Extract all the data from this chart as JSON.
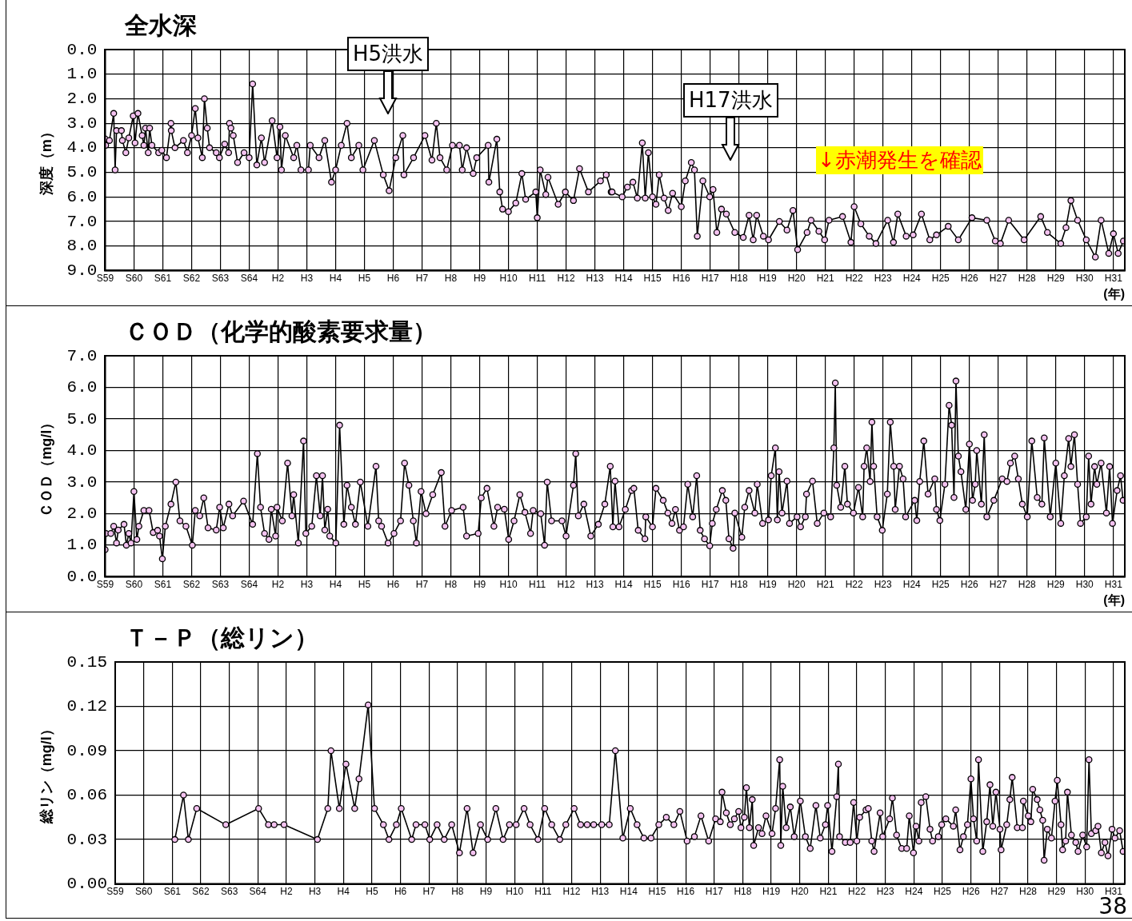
{
  "chart_data": [
    {
      "type": "line",
      "title": "全水深",
      "ylabel": "深度（m）",
      "xlabel": "(年)",
      "color": "#000000",
      "marker": "circle",
      "line_style": "solid",
      "grid": true,
      "annotations": [
        "H5洪水",
        "H17洪水",
        "↓赤潮発生を確認"
      ],
      "ylim": [
        9,
        0
      ],
      "yticks": [
        {
          "value": 0,
          "label": "0.0"
        },
        {
          "value": 1,
          "label": "1.0"
        },
        {
          "value": 2,
          "label": "2.0"
        },
        {
          "value": 3,
          "label": "3.0"
        },
        {
          "value": 4,
          "label": "4.0"
        },
        {
          "value": 5,
          "label": "5.0"
        },
        {
          "value": 6,
          "label": "6.0"
        },
        {
          "value": 7,
          "label": "7.0"
        },
        {
          "value": 8,
          "label": "8.0"
        },
        {
          "value": 9,
          "label": "9.0"
        }
      ],
      "xlim": [
        "1984",
        "2019-05-25"
      ],
      "xticks": [
        {
          "value": "1984",
          "label": "S59"
        },
        {
          "value": "1985",
          "label": "S60"
        },
        {
          "value": "1986",
          "label": "S61"
        },
        {
          "value": "1987",
          "label": "S62"
        },
        {
          "value": "1988",
          "label": "S63"
        },
        {
          "value": "1989",
          "label": "S64"
        },
        {
          "value": "1990",
          "label": "H2"
        },
        {
          "value": "1991",
          "label": "H3"
        },
        {
          "value": "1992",
          "label": "H4"
        },
        {
          "value": "1993",
          "label": "H5"
        },
        {
          "value": "1994",
          "label": "H6"
        },
        {
          "value": "1995",
          "label": "H7"
        },
        {
          "value": "1996",
          "label": "H8"
        },
        {
          "value": "1997",
          "label": "H9"
        },
        {
          "value": "1998",
          "label": "H10"
        },
        {
          "value": "1999",
          "label": "H11"
        },
        {
          "value": "2000",
          "label": "H12"
        },
        {
          "value": "2001",
          "label": "H13"
        },
        {
          "value": "2002",
          "label": "H14"
        },
        {
          "value": "2003",
          "label": "H15"
        },
        {
          "value": "2004",
          "label": "H16"
        },
        {
          "value": "2005",
          "label": "H17"
        },
        {
          "value": "2006",
          "label": "H18"
        },
        {
          "value": "2007",
          "label": "H19"
        },
        {
          "value": "2008",
          "label": "H20"
        },
        {
          "value": "2009",
          "label": "H21"
        },
        {
          "value": "2010",
          "label": "H22"
        },
        {
          "value": "2011",
          "label": "H23"
        },
        {
          "value": "2012",
          "label": "H24"
        },
        {
          "value": "2013",
          "label": "H25"
        },
        {
          "value": "2014",
          "label": "H26"
        },
        {
          "value": "2015",
          "label": "H27"
        },
        {
          "value": "2016",
          "label": "H28"
        },
        {
          "value": "2017",
          "label": "H29"
        },
        {
          "value": "2018",
          "label": "H30"
        },
        {
          "value": "2019",
          "label": "H31"
        }
      ],
      "x": [
        "1984-01-01",
        "1984-01-08",
        "1984-02-25",
        "1984-04-19",
        "1984-05-07",
        "1984-05-25",
        "1984-07-26",
        "1984-08-07",
        "1984-09-20",
        "1984-10-28",
        "1984-12-23",
        "1985-01-15",
        "1985-02-21",
        "1985-04-15",
        "1985-05-07",
        "1985-05-28",
        "1985-07-01",
        "1985-07-19",
        "1985-08-17",
        "1985-11-10",
        "1985-12-20",
        "1986-02-17",
        "1986-04-15",
        "1986-04-19",
        "1986-06-05",
        "1986-09-20",
        "1986-11-10",
        "1987-01-01",
        "1987-02-17",
        "1987-03-23",
        "1987-05-17",
        "1987-06-13",
        "1987-07-19",
        "1987-08-17",
        "1987-11-10",
        "1987-12-20",
        "1988-02-25",
        "1988-04-15",
        "1988-04-26",
        "1988-05-14",
        "1988-06-13",
        "1988-08-07",
        "1988-10-28",
        "1989-01-01",
        "1989-02-14",
        "1989-04-08",
        "1989-06-05",
        "1989-07-15",
        "1989-10-19",
        "1989-12-20",
        "1990-01-26",
        "1990-02-14",
        "1990-04-04",
        "1990-07-19",
        "1990-08-28",
        "1990-10-19",
        "1991-01-22",
        "1991-02-14",
        "1991-06-05",
        "1991-08-17",
        "1991-11-10",
        "1992-01-01",
        "1992-03-13",
        "1992-05-25",
        "1992-07-19",
        "1992-10-22",
        "1992-12-13",
        "1993-05-07",
        "1993-08-28",
        "1993-11-10",
        "1994-02-03",
        "1994-05-03",
        "1994-05-17",
        "1994-09-16",
        "1995-02-07",
        "1995-05-07",
        "1995-07-01",
        "1995-08-17",
        "1995-11-10",
        "1996-01-22",
        "1996-04-19",
        "1996-05-25",
        "1996-07-19",
        "1996-10-11",
        "1996-11-25",
        "1997-04-19",
        "1997-04-28",
        "1997-08-07",
        "1997-09-13",
        "1997-10-19",
        "1998-01-01",
        "1998-04-04",
        "1998-06-20",
        "1998-08-07",
        "1998-12-13",
        "1999-01-01",
        "1999-02-07",
        "1999-04-19",
        "1999-05-17",
        "1999-09-23",
        "1999-12-23",
        "2000-04-04",
        "2000-06-20",
        "2000-10-11",
        "2001-03-13",
        "2001-05-25",
        "2001-07-26",
        "2001-08-07",
        "2001-12-13",
        "2002-02-17",
        "2002-04-28",
        "2002-06-23",
        "2002-08-25",
        "2002-10-01",
        "2002-11-10",
        "2003-01-01",
        "2003-02-14",
        "2003-03-27",
        "2003-05-28",
        "2003-07-19",
        "2003-09-13",
        "2004-01-01",
        "2004-02-21",
        "2004-05-07",
        "2004-06-16",
        "2004-07-22",
        "2004-10-01",
        "2004-12-27",
        "2005-02-07",
        "2005-03-27",
        "2005-05-25",
        "2005-07-26",
        "2005-11-10",
        "2006-02-25",
        "2006-05-10",
        "2006-07-01",
        "2006-08-14",
        "2006-11-07",
        "2007-01-11",
        "2007-05-28",
        "2007-09-02",
        "2007-11-17",
        "2008-01-15",
        "2008-05-14",
        "2008-07-04",
        "2008-10-11",
        "2008-12-23",
        "2009-02-17",
        "2009-08-07",
        "2009-11-21",
        "2010-01-01",
        "2010-03-27",
        "2010-07-11",
        "2010-10-04",
        "2011-03-02",
        "2011-05-14",
        "2011-07-08",
        "2011-10-22",
        "2012-01-19",
        "2012-05-03",
        "2012-08-17",
        "2012-11-10",
        "2013-04-08",
        "2013-08-14",
        "2014-02-03",
        "2014-08-10",
        "2014-11-25",
        "2015-01-29",
        "2015-05-14",
        "2015-11-25",
        "2016-06-23",
        "2016-09-16",
        "2017-03-05",
        "2017-05-10",
        "2017-07-11",
        "2017-10-04",
        "2018-01-22",
        "2018-05-17",
        "2018-07-29",
        "2018-11-03",
        "2019-01-01",
        "2019-03-02",
        "2019-05-07"
      ],
      "values": [
        3.64,
        3.9,
        3.7,
        2.6,
        4.9,
        3.3,
        3.3,
        3.7,
        4.2,
        3.6,
        2.7,
        3.8,
        2.6,
        3.5,
        3.9,
        3.2,
        4.2,
        3.2,
        3.9,
        4.2,
        4.1,
        4.4,
        3.0,
        3.3,
        4.0,
        3.7,
        4.2,
        3.5,
        2.4,
        3.6,
        4.4,
        2.0,
        3.2,
        4.0,
        4.2,
        4.4,
        3.85,
        4.2,
        3.0,
        3.2,
        3.5,
        4.6,
        4.2,
        4.4,
        1.4,
        4.7,
        3.6,
        4.6,
        2.9,
        4.4,
        3.15,
        4.9,
        3.5,
        4.4,
        3.9,
        4.9,
        4.9,
        3.9,
        4.4,
        3.7,
        5.4,
        4.9,
        3.9,
        3.0,
        4.4,
        3.9,
        4.9,
        3.7,
        5.1,
        5.75,
        4.4,
        3.5,
        5.1,
        4.4,
        3.5,
        4.5,
        3.0,
        4.4,
        4.9,
        3.9,
        3.9,
        4.9,
        4.0,
        5.05,
        4.4,
        3.9,
        5.4,
        3.65,
        5.8,
        6.5,
        6.6,
        6.25,
        5.05,
        6.1,
        5.8,
        6.85,
        4.9,
        5.9,
        5.2,
        6.3,
        5.8,
        6.15,
        4.85,
        5.8,
        5.35,
        5.1,
        5.8,
        5.8,
        6.0,
        5.6,
        5.4,
        6.05,
        3.8,
        6.05,
        4.2,
        6.0,
        6.3,
        5.1,
        6.05,
        6.55,
        5.85,
        6.4,
        5.35,
        4.6,
        4.9,
        7.6,
        5.35,
        6.0,
        5.7,
        7.45,
        6.5,
        6.7,
        7.45,
        7.65,
        6.75,
        7.75,
        6.75,
        7.6,
        7.75,
        7.0,
        7.35,
        6.55,
        8.15,
        7.45,
        6.95,
        7.4,
        7.75,
        6.95,
        6.8,
        7.85,
        6.4,
        7.1,
        7.6,
        7.9,
        6.95,
        7.85,
        6.7,
        7.6,
        7.55,
        6.7,
        7.75,
        7.55,
        7.2,
        7.75,
        6.85,
        6.95,
        7.8,
        7.9,
        6.95,
        7.75,
        6.8,
        7.45,
        7.9,
        7.25,
        6.15,
        6.95,
        7.75,
        8.45,
        6.95,
        8.3,
        7.5,
        8.3,
        7.8
      ]
    },
    {
      "type": "line",
      "title": "ＣＯＤ（化学的酸素要求量）",
      "ylabel": "ＣＯＤ（mg/l）",
      "xlabel": "(年)",
      "color": "#000000",
      "marker": "circle",
      "line_style": "solid",
      "grid": true,
      "ylim": [
        0,
        7
      ],
      "yticks": [
        {
          "value": 0,
          "label": "0.0"
        },
        {
          "value": 1,
          "label": "1.0"
        },
        {
          "value": 2,
          "label": "2.0"
        },
        {
          "value": 3,
          "label": "3.0"
        },
        {
          "value": 4,
          "label": "4.0"
        },
        {
          "value": 5,
          "label": "5.0"
        },
        {
          "value": 6,
          "label": "6.0"
        },
        {
          "value": 7,
          "label": "7.0"
        }
      ],
      "xlim": [
        "1984",
        "2019-05-25"
      ],
      "xticks": [
        {
          "value": "1984",
          "label": "S59"
        },
        {
          "value": "1985",
          "label": "S60"
        },
        {
          "value": "1986",
          "label": "S61"
        },
        {
          "value": "1987",
          "label": "S62"
        },
        {
          "value": "1988",
          "label": "S63"
        },
        {
          "value": "1989",
          "label": "S64"
        },
        {
          "value": "1990",
          "label": "H2"
        },
        {
          "value": "1991",
          "label": "H3"
        },
        {
          "value": "1992",
          "label": "H4"
        },
        {
          "value": "1993",
          "label": "H5"
        },
        {
          "value": "1994",
          "label": "H6"
        },
        {
          "value": "1995",
          "label": "H7"
        },
        {
          "value": "1996",
          "label": "H8"
        },
        {
          "value": "1997",
          "label": "H9"
        },
        {
          "value": "1998",
          "label": "H10"
        },
        {
          "value": "1999",
          "label": "H11"
        },
        {
          "value": "2000",
          "label": "H12"
        },
        {
          "value": "2001",
          "label": "H13"
        },
        {
          "value": "2002",
          "label": "H14"
        },
        {
          "value": "2003",
          "label": "H15"
        },
        {
          "value": "2004",
          "label": "H16"
        },
        {
          "value": "2005",
          "label": "H17"
        },
        {
          "value": "2006",
          "label": "H18"
        },
        {
          "value": "2007",
          "label": "H19"
        },
        {
          "value": "2008",
          "label": "H20"
        },
        {
          "value": "2009",
          "label": "H21"
        },
        {
          "value": "2010",
          "label": "H22"
        },
        {
          "value": "2011",
          "label": "H23"
        },
        {
          "value": "2012",
          "label": "H24"
        },
        {
          "value": "2013",
          "label": "H25"
        },
        {
          "value": "2014",
          "label": "H26"
        },
        {
          "value": "2015",
          "label": "H27"
        },
        {
          "value": "2016",
          "label": "H28"
        },
        {
          "value": "2017",
          "label": "H29"
        },
        {
          "value": "2018",
          "label": "H30"
        },
        {
          "value": "2019",
          "label": "H31"
        }
      ],
      "x": [
        "1984-01-01",
        "1984-01-11",
        "1984-03-13",
        "1984-04-19",
        "1984-05-25",
        "1984-06-16",
        "1984-08-28",
        "1984-09-27",
        "1984-10-28",
        "1984-11-25",
        "1985-01-01",
        "1985-02-07",
        "1985-03-05",
        "1985-05-07",
        "1985-07-11",
        "1985-09-02",
        "1985-10-28",
        "1985-11-21",
        "1985-12-27",
        "1986-02-03",
        "1986-04-15",
        "1986-06-16",
        "1986-08-07",
        "1986-10-22",
        "1987-01-11",
        "1987-02-17",
        "1987-04-15",
        "1987-06-05",
        "1987-07-29",
        "1987-11-10",
        "1987-12-23",
        "1988-02-07",
        "1988-04-19",
        "1988-06-05",
        "1988-10-22",
        "1989-02-14",
        "1989-04-15",
        "1989-05-25",
        "1989-07-15",
        "1989-09-09",
        "1989-10-08",
        "1989-12-02",
        "1989-12-20",
        "1990-02-25",
        "1990-05-03",
        "1990-06-27",
        "1990-07-19",
        "1990-09-16",
        "1990-11-21",
        "1990-12-20",
        "1991-03-05",
        "1991-05-03",
        "1991-06-20",
        "1991-07-19",
        "1991-08-17",
        "1991-09-23",
        "1991-10-19",
        "1992-01-04",
        "1992-02-21",
        "1992-04-15",
        "1992-05-25",
        "1992-07-19",
        "1992-09-09",
        "1992-11-10",
        "1993-02-14",
        "1993-05-28",
        "1993-07-01",
        "1993-08-07",
        "1993-10-28",
        "1994-01-11",
        "1994-04-04",
        "1994-05-25",
        "1994-07-19",
        "1994-09-13",
        "1994-10-22",
        "1994-12-20",
        "1995-02-21",
        "1995-05-17",
        "1995-09-02",
        "1995-10-19",
        "1996-01-11",
        "1996-06-05",
        "1996-07-19",
        "1996-12-13",
        "1997-01-22",
        "1997-04-04",
        "1997-07-01",
        "1997-08-17",
        "1997-11-10",
        "1998-01-04",
        "1998-03-13",
        "1998-05-25",
        "1998-07-29",
        "1998-10-08",
        "1998-11-10",
        "1999-02-14",
        "1999-04-04",
        "1999-05-07",
        "1999-07-01",
        "1999-11-10",
        "2000-01-01",
        "2000-04-04",
        "2000-05-03",
        "2000-06-05",
        "2000-08-14",
        "2000-11-10",
        "2001-02-14",
        "2001-05-07",
        "2001-07-15",
        "2001-08-17",
        "2001-09-13",
        "2001-11-03",
        "2002-01-22",
        "2002-04-11",
        "2002-05-10",
        "2002-07-04",
        "2002-09-27",
        "2002-10-08",
        "2003-01-01",
        "2003-02-14",
        "2003-05-17",
        "2003-07-15",
        "2003-09-05",
        "2003-10-19",
        "2003-12-09",
        "2004-01-29",
        "2004-03-23",
        "2004-05-25",
        "2004-07-15",
        "2004-08-28",
        "2004-10-22",
        "2004-12-27",
        "2005-01-29",
        "2005-03-20",
        "2005-06-05",
        "2005-07-19",
        "2005-08-28",
        "2005-10-19",
        "2005-11-10",
        "2006-02-07",
        "2006-03-16",
        "2006-05-10",
        "2006-07-22",
        "2006-08-21",
        "2006-10-28",
        "2007-01-11",
        "2007-02-14",
        "2007-04-08",
        "2007-05-03",
        "2007-05-25",
        "2007-07-01",
        "2007-09-02",
        "2007-10-04",
        "2008-01-08",
        "2008-02-21",
        "2008-04-22",
        "2008-05-07",
        "2008-07-22",
        "2008-09-20",
        "2008-12-13",
        "2009-03-09",
        "2009-04-19",
        "2009-05-07",
        "2009-05-25",
        "2009-07-15",
        "2009-09-05",
        "2009-10-08",
        "2009-12-23",
        "2010-02-25",
        "2010-04-19",
        "2010-05-07",
        "2010-06-09",
        "2010-07-22",
        "2010-08-14",
        "2010-09-05",
        "2010-10-19",
        "2010-12-23",
        "2011-02-25",
        "2011-04-04",
        "2011-05-17",
        "2011-06-05",
        "2011-07-29",
        "2011-09-13",
        "2011-10-15",
        "2012-02-07",
        "2012-03-05",
        "2012-04-11",
        "2012-06-02",
        "2012-07-26",
        "2012-10-19",
        "2012-11-10",
        "2012-12-23",
        "2013-02-25",
        "2013-04-19",
        "2013-05-21",
        "2013-06-20",
        "2013-07-15",
        "2013-08-14",
        "2013-09-16",
        "2013-11-17",
        "2014-01-01",
        "2014-02-10",
        "2014-03-16",
        "2014-04-04",
        "2014-06-02",
        "2014-07-08",
        "2014-08-10",
        "2014-11-07",
        "2015-02-21",
        "2015-04-22",
        "2015-06-05",
        "2015-07-29",
        "2015-09-13",
        "2015-11-03",
        "2016-01-04",
        "2016-03-02",
        "2016-05-10",
        "2016-07-08",
        "2016-08-07",
        "2016-10-22",
        "2017-01-01",
        "2017-03-05",
        "2017-04-19",
        "2017-06-13",
        "2017-07-11",
        "2017-08-25",
        "2017-10-04",
        "2017-11-10",
        "2018-01-22",
        "2018-02-21",
        "2018-03-23",
        "2018-05-07",
        "2018-06-05",
        "2018-07-29",
        "2018-10-04",
        "2018-11-14",
        "2018-12-20",
        "2019-02-17",
        "2019-04-01",
        "2019-05-03"
      ],
      "values": [
        0.86,
        1.37,
        1.37,
        1.6,
        1.07,
        1.48,
        1.66,
        1.0,
        1.37,
        1.07,
        2.7,
        1.18,
        1.6,
        2.1,
        2.1,
        1.4,
        1.47,
        1.29,
        0.57,
        1.6,
        2.3,
        3.0,
        1.77,
        1.6,
        1.0,
        2.1,
        1.93,
        2.5,
        1.55,
        1.48,
        2.2,
        1.55,
        2.3,
        1.93,
        2.4,
        1.66,
        3.9,
        2.2,
        1.37,
        1.18,
        2.14,
        1.29,
        2.2,
        1.77,
        3.6,
        1.93,
        2.6,
        1.07,
        4.3,
        1.37,
        1.6,
        3.2,
        1.93,
        3.2,
        1.48,
        2.14,
        1.29,
        1.07,
        4.8,
        1.66,
        2.9,
        2.2,
        1.66,
        3.0,
        1.6,
        3.5,
        1.77,
        1.6,
        1.07,
        1.37,
        1.77,
        3.6,
        2.9,
        1.77,
        1.07,
        2.7,
        2.0,
        2.6,
        3.3,
        1.6,
        2.1,
        2.2,
        1.29,
        1.37,
        2.5,
        2.8,
        1.6,
        2.2,
        2.14,
        1.18,
        1.77,
        2.6,
        2.04,
        1.37,
        2.1,
        2.0,
        1.0,
        3.0,
        1.77,
        1.77,
        1.29,
        2.9,
        3.9,
        1.93,
        2.3,
        1.29,
        1.66,
        2.3,
        3.5,
        1.58,
        3.03,
        1.58,
        2.13,
        2.73,
        2.8,
        1.47,
        1.2,
        1.9,
        1.58,
        2.8,
        2.42,
        2.02,
        1.69,
        2.13,
        1.47,
        1.58,
        2.93,
        1.9,
        3.2,
        1.47,
        1.2,
        0.98,
        1.69,
        2.13,
        2.73,
        2.42,
        1.2,
        0.9,
        2.02,
        1.25,
        2.2,
        2.73,
        2.02,
        2.93,
        1.69,
        1.8,
        3.2,
        4.08,
        1.8,
        3.33,
        2.02,
        3.03,
        1.69,
        1.9,
        1.58,
        1.9,
        2.62,
        3.03,
        1.69,
        2.02,
        1.9,
        4.08,
        6.14,
        2.9,
        2.2,
        3.5,
        2.3,
        2.02,
        2.83,
        1.9,
        3.5,
        4.08,
        3.02,
        4.9,
        3.5,
        1.9,
        1.47,
        2.62,
        4.9,
        3.5,
        2.13,
        3.5,
        3.1,
        1.9,
        2.42,
        1.78,
        3.02,
        4.3,
        2.62,
        3.1,
        2.13,
        1.78,
        2.93,
        5.43,
        4.8,
        2.51,
        6.2,
        3.82,
        3.33,
        2.13,
        4.2,
        2.42,
        2.93,
        4.0,
        2.3,
        4.5,
        1.9,
        2.42,
        3.1,
        3.02,
        3.6,
        3.82,
        3.1,
        2.3,
        1.9,
        4.3,
        2.51,
        2.3,
        4.4,
        1.9,
        3.6,
        1.69,
        3.2,
        4.38,
        3.49,
        4.5,
        2.93,
        1.69,
        1.9,
        3.82,
        2.3,
        3.49,
        2.93,
        3.6,
        2.02,
        3.49,
        1.69,
        2.73,
        3.2,
        2.42
      ]
    },
    {
      "type": "line",
      "title": "Ｔ－Ｐ（総リン）",
      "ylabel": "総リン（mg/l）",
      "color": "#000000",
      "marker": "circle",
      "line_style": "solid",
      "grid": true,
      "annotations": [
        "38"
      ],
      "ylim": [
        0,
        0.15
      ],
      "yticks": [
        {
          "value": 0,
          "label": "0.00"
        },
        {
          "value": 0.03,
          "label": "0.03"
        },
        {
          "value": 0.06,
          "label": "0.06"
        },
        {
          "value": 0.09,
          "label": "0.09"
        },
        {
          "value": 0.12,
          "label": "0.12"
        },
        {
          "value": 0.15,
          "label": "0.15"
        }
      ],
      "xlim": [
        "1984",
        "2019-05-25"
      ],
      "xticks": [
        {
          "value": "1984",
          "label": "S59"
        },
        {
          "value": "1985",
          "label": "S60"
        },
        {
          "value": "1986",
          "label": "S61"
        },
        {
          "value": "1987",
          "label": "S62"
        },
        {
          "value": "1988",
          "label": "S63"
        },
        {
          "value": "1989",
          "label": "S64"
        },
        {
          "value": "1990",
          "label": "H2"
        },
        {
          "value": "1991",
          "label": "H3"
        },
        {
          "value": "1992",
          "label": "H4"
        },
        {
          "value": "1993",
          "label": "H5"
        },
        {
          "value": "1994",
          "label": "H6"
        },
        {
          "value": "1995",
          "label": "H7"
        },
        {
          "value": "1996",
          "label": "H8"
        },
        {
          "value": "1997",
          "label": "H9"
        },
        {
          "value": "1998",
          "label": "H10"
        },
        {
          "value": "1999",
          "label": "H11"
        },
        {
          "value": "2000",
          "label": "H12"
        },
        {
          "value": "2001",
          "label": "H13"
        },
        {
          "value": "2002",
          "label": "H14"
        },
        {
          "value": "2003",
          "label": "H15"
        },
        {
          "value": "2004",
          "label": "H16"
        },
        {
          "value": "2005",
          "label": "H17"
        },
        {
          "value": "2006",
          "label": "H18"
        },
        {
          "value": "2007",
          "label": "H19"
        },
        {
          "value": "2008",
          "label": "H20"
        },
        {
          "value": "2009",
          "label": "H21"
        },
        {
          "value": "2010",
          "label": "H22"
        },
        {
          "value": "2011",
          "label": "H23"
        },
        {
          "value": "2012",
          "label": "H24"
        },
        {
          "value": "2013",
          "label": "H25"
        },
        {
          "value": "2014",
          "label": "H26"
        },
        {
          "value": "2015",
          "label": "H27"
        },
        {
          "value": "2016",
          "label": "H28"
        },
        {
          "value": "2017",
          "label": "H29"
        },
        {
          "value": "2018",
          "label": "H30"
        },
        {
          "value": "2019",
          "label": "H31"
        }
      ],
      "x": [
        "1986-02-03",
        "1986-05-25",
        "1986-07-26",
        "1986-11-10",
        "1987-11-17",
        "1989-01-11",
        "1989-05-17",
        "1989-07-29",
        "1989-12-02",
        "1991-02-03",
        "1991-06-16",
        "1991-07-26",
        "1991-11-10",
        "1992-02-03",
        "1992-05-25",
        "1992-07-19",
        "1992-11-14",
        "1993-02-03",
        "1993-05-28",
        "1993-08-07",
        "1993-11-10",
        "1994-01-11",
        "1994-05-25",
        "1994-07-19",
        "1994-11-10",
        "1995-01-11",
        "1995-04-15",
        "1995-07-15",
        "1995-10-19",
        "1996-01-26",
        "1996-05-03",
        "1996-07-19",
        "1996-10-22",
        "1997-01-22",
        "1997-05-07",
        "1997-08-07",
        "1997-10-28",
        "1998-01-22",
        "1998-05-03",
        "1998-07-19",
        "1998-10-28",
        "1999-01-22",
        "1999-04-22",
        "1999-08-03",
        "1999-10-19",
        "2000-02-03",
        "2000-04-26",
        "2000-07-19",
        "2000-10-11",
        "2001-01-22",
        "2001-04-28",
        "2001-07-15",
        "2001-10-19",
        "2002-01-22",
        "2002-04-19",
        "2002-07-15",
        "2002-10-15",
        "2003-01-22",
        "2003-04-28",
        "2003-08-03",
        "2003-10-19",
        "2004-01-19",
        "2004-04-22",
        "2004-07-15",
        "2004-10-22",
        "2005-01-19",
        "2005-03-20",
        "2005-04-11",
        "2005-06-05",
        "2005-07-26",
        "2005-09-16",
        "2005-11-10",
        "2005-12-09",
        "2006-01-22",
        "2006-02-17",
        "2006-03-27",
        "2006-05-03",
        "2006-05-21",
        "2006-07-22",
        "2006-09-05",
        "2006-10-26",
        "2007-01-11",
        "2007-02-25",
        "2007-04-19",
        "2007-05-03",
        "2007-05-28",
        "2007-07-11",
        "2007-09-02",
        "2007-10-22",
        "2008-01-08",
        "2008-03-13",
        "2008-05-14",
        "2008-07-26",
        "2008-09-20",
        "2008-11-25",
        "2008-12-23",
        "2009-02-17",
        "2009-04-19",
        "2009-05-10",
        "2009-05-25",
        "2009-08-07",
        "2009-10-08",
        "2009-11-21",
        "2010-01-01",
        "2010-02-07",
        "2010-04-28",
        "2010-05-28",
        "2010-07-11",
        "2010-08-10",
        "2010-10-26",
        "2010-11-28",
        "2011-02-25",
        "2011-04-01",
        "2011-05-25",
        "2011-07-29",
        "2011-10-01",
        "2011-11-03",
        "2011-12-27",
        "2012-01-29",
        "2012-03-05",
        "2012-04-04",
        "2012-06-02",
        "2012-07-26",
        "2012-08-28",
        "2012-11-10",
        "2012-12-23",
        "2013-02-14",
        "2013-05-21",
        "2013-06-20",
        "2013-08-14",
        "2013-09-27",
        "2013-11-17",
        "2014-01-01",
        "2014-02-03",
        "2014-03-16",
        "2014-04-08",
        "2014-06-02",
        "2014-07-22",
        "2014-09-02",
        "2014-10-08",
        "2014-11-17",
        "2015-01-08",
        "2015-01-22",
        "2015-04-04",
        "2015-05-14",
        "2015-06-13",
        "2015-08-17",
        "2015-10-22",
        "2015-11-03",
        "2016-01-04",
        "2016-02-07",
        "2016-03-02",
        "2016-04-28",
        "2016-06-02",
        "2016-07-08",
        "2016-07-26",
        "2016-09-05",
        "2016-10-28",
        "2016-12-13",
        "2017-01-11",
        "2017-02-28",
        "2017-03-20",
        "2017-04-28",
        "2017-05-21",
        "2017-07-11",
        "2017-09-05",
        "2017-10-04",
        "2017-12-02",
        "2018-01-22",
        "2018-02-21",
        "2018-03-23",
        "2018-05-17",
        "2018-06-16",
        "2018-07-29",
        "2018-09-13",
        "2018-10-22",
        "2018-12-13",
        "2019-01-19",
        "2019-03-20",
        "2019-05-03"
      ],
      "values": [
        0.03,
        0.06,
        0.03,
        0.051,
        0.04,
        0.051,
        0.04,
        0.04,
        0.04,
        0.03,
        0.051,
        0.09,
        0.051,
        0.081,
        0.051,
        0.071,
        0.121,
        0.051,
        0.04,
        0.03,
        0.04,
        0.051,
        0.03,
        0.04,
        0.04,
        0.03,
        0.04,
        0.03,
        0.04,
        0.021,
        0.051,
        0.021,
        0.04,
        0.03,
        0.051,
        0.03,
        0.04,
        0.04,
        0.051,
        0.04,
        0.03,
        0.051,
        0.04,
        0.03,
        0.04,
        0.051,
        0.04,
        0.04,
        0.04,
        0.04,
        0.04,
        0.09,
        0.031,
        0.051,
        0.04,
        0.031,
        0.031,
        0.04,
        0.045,
        0.04,
        0.049,
        0.029,
        0.032,
        0.046,
        0.029,
        0.044,
        0.042,
        0.062,
        0.048,
        0.04,
        0.044,
        0.049,
        0.038,
        0.045,
        0.065,
        0.038,
        0.057,
        0.026,
        0.038,
        0.034,
        0.046,
        0.034,
        0.051,
        0.084,
        0.026,
        0.066,
        0.038,
        0.052,
        0.032,
        0.056,
        0.032,
        0.024,
        0.053,
        0.031,
        0.04,
        0.053,
        0.022,
        0.059,
        0.081,
        0.032,
        0.028,
        0.028,
        0.055,
        0.029,
        0.045,
        0.05,
        0.051,
        0.029,
        0.022,
        0.048,
        0.032,
        0.044,
        0.058,
        0.033,
        0.024,
        0.024,
        0.046,
        0.021,
        0.039,
        0.029,
        0.055,
        0.059,
        0.037,
        0.029,
        0.032,
        0.04,
        0.044,
        0.039,
        0.05,
        0.023,
        0.032,
        0.04,
        0.071,
        0.044,
        0.029,
        0.084,
        0.022,
        0.042,
        0.067,
        0.039,
        0.062,
        0.037,
        0.023,
        0.04,
        0.057,
        0.072,
        0.038,
        0.038,
        0.056,
        0.046,
        0.042,
        0.064,
        0.057,
        0.05,
        0.043,
        0.016,
        0.037,
        0.031,
        0.056,
        0.07,
        0.04,
        0.023,
        0.029,
        0.062,
        0.033,
        0.028,
        0.022,
        0.033,
        0.025,
        0.084,
        0.034,
        0.036,
        0.039,
        0.021,
        0.028,
        0.019,
        0.037,
        0.031,
        0.036,
        0.022
      ]
    }
  ]
}
